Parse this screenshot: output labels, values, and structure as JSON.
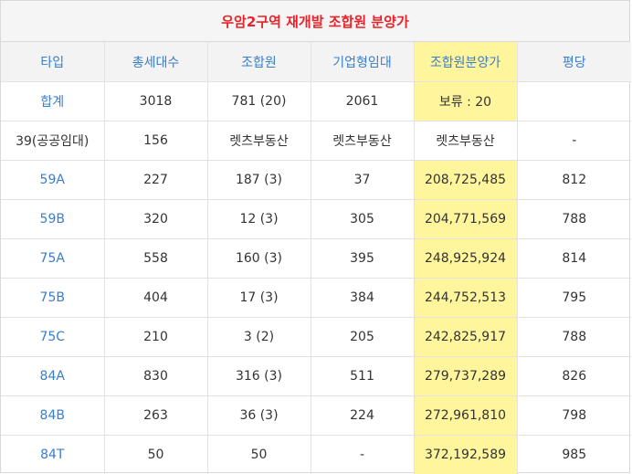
{
  "title": "우암2구역 재개발 조합원 분양가",
  "colors": {
    "title": "#e8232a",
    "header_text": "#3a7ec9",
    "highlight": "#fff59d"
  },
  "headers": [
    "타입",
    "총세대수",
    "조합원",
    "기업형임대",
    "조합원분양가",
    "평당"
  ],
  "rows": [
    [
      "합계",
      "3018",
      "781 (20)",
      "2061",
      "보류 : 20",
      ""
    ],
    [
      "39(공공임대)",
      "156",
      "렛츠부동산",
      "렛츠부동산",
      "렛츠부동산",
      "-"
    ],
    [
      "59A",
      "227",
      "187 (3)",
      "37",
      "208,725,485",
      "812"
    ],
    [
      "59B",
      "320",
      "12 (3)",
      "305",
      "204,771,569",
      "788"
    ],
    [
      "75A",
      "558",
      "160 (3)",
      "395",
      "248,925,924",
      "814"
    ],
    [
      "75B",
      "404",
      "17 (3)",
      "384",
      "244,752,513",
      "795"
    ],
    [
      "75C",
      "210",
      "3 (2)",
      "205",
      "242,825,917",
      "788"
    ],
    [
      "84A",
      "830",
      "316 (3)",
      "511",
      "279,737,289",
      "826"
    ],
    [
      "84B",
      "263",
      "36 (3)",
      "224",
      "272,961,810",
      "798"
    ],
    [
      "84T",
      "50",
      "50",
      "-",
      "372,192,589",
      "985"
    ]
  ]
}
